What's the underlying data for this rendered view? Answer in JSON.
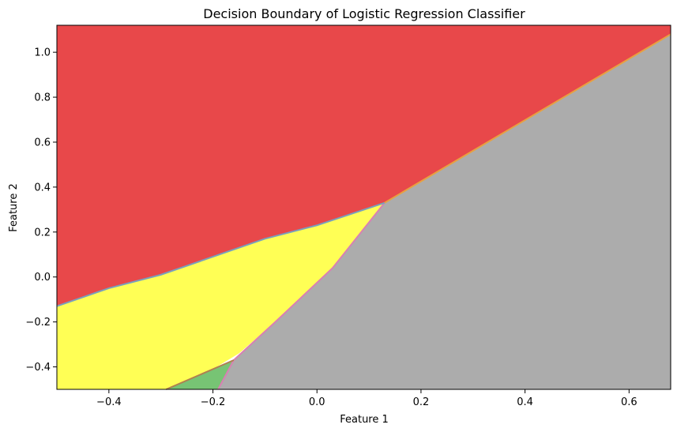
{
  "chart_data": {
    "type": "decision-boundary",
    "title": "Decision Boundary of Logistic Regression Classifier",
    "xlabel": "Feature 1",
    "ylabel": "Feature 2",
    "xlim": [
      -0.5,
      0.68
    ],
    "ylim": [
      -0.5,
      1.12
    ],
    "x_ticks": [
      -0.4,
      -0.2,
      0.0,
      0.2,
      0.4,
      0.6
    ],
    "x_tick_labels": [
      "−0.4",
      "−0.2",
      "0.0",
      "0.2",
      "0.4",
      "0.6"
    ],
    "y_ticks": [
      -0.4,
      -0.2,
      0.0,
      0.2,
      0.4,
      0.6,
      0.8,
      1.0
    ],
    "y_tick_labels": [
      "−0.4",
      "−0.2",
      "0.0",
      "0.2",
      "0.4",
      "0.6",
      "0.8",
      "1.0"
    ],
    "regions": [
      {
        "name": "red",
        "color": "#e8484a",
        "polygon": [
          [
            -0.5,
            1.12
          ],
          [
            0.68,
            1.12
          ],
          [
            0.68,
            1.08
          ],
          [
            0.13,
            0.33
          ],
          [
            0.0,
            0.23
          ],
          [
            -0.1,
            0.17
          ],
          [
            -0.2,
            0.09
          ],
          [
            -0.3,
            0.01
          ],
          [
            -0.4,
            -0.05
          ],
          [
            -0.5,
            -0.13
          ]
        ]
      },
      {
        "name": "yellow",
        "color": "#ffff55",
        "polygon": [
          [
            -0.5,
            -0.13
          ],
          [
            -0.4,
            -0.05
          ],
          [
            -0.3,
            0.01
          ],
          [
            -0.2,
            0.09
          ],
          [
            -0.1,
            0.17
          ],
          [
            0.0,
            0.23
          ],
          [
            0.13,
            0.33
          ],
          [
            0.03,
            0.04
          ],
          [
            -0.08,
            -0.2
          ],
          [
            -0.15,
            -0.34
          ],
          [
            -0.2,
            -0.41
          ],
          [
            -0.29,
            -0.5
          ],
          [
            -0.5,
            -0.5
          ]
        ]
      },
      {
        "name": "green",
        "color": "#77c474",
        "polygon": [
          [
            -0.29,
            -0.5
          ],
          [
            -0.2,
            -0.41
          ],
          [
            -0.16,
            -0.37
          ],
          [
            -0.19,
            -0.5
          ]
        ]
      },
      {
        "name": "gray",
        "color": "#acacac",
        "polygon": [
          [
            0.13,
            0.33
          ],
          [
            0.68,
            1.08
          ],
          [
            0.68,
            -0.5
          ],
          [
            -0.19,
            -0.5
          ],
          [
            -0.16,
            -0.37
          ],
          [
            -0.08,
            -0.2
          ],
          [
            0.03,
            0.04
          ]
        ]
      }
    ],
    "boundaries": [
      {
        "color": "#d980b3",
        "points": [
          [
            0.13,
            0.33
          ],
          [
            0.03,
            0.04
          ],
          [
            -0.08,
            -0.2
          ],
          [
            -0.16,
            -0.37
          ],
          [
            -0.19,
            -0.5
          ]
        ]
      },
      {
        "color": "#7aa0bd",
        "points": [
          [
            -0.5,
            -0.13
          ],
          [
            -0.4,
            -0.05
          ],
          [
            -0.3,
            0.01
          ],
          [
            -0.2,
            0.09
          ],
          [
            -0.1,
            0.17
          ],
          [
            0.0,
            0.23
          ],
          [
            0.13,
            0.33
          ]
        ]
      },
      {
        "color": "#e8a040",
        "points": [
          [
            0.13,
            0.33
          ],
          [
            0.68,
            1.08
          ]
        ]
      },
      {
        "color": "#b08050",
        "points": [
          [
            -0.29,
            -0.5
          ],
          [
            -0.2,
            -0.41
          ],
          [
            -0.16,
            -0.37
          ]
        ]
      }
    ]
  }
}
